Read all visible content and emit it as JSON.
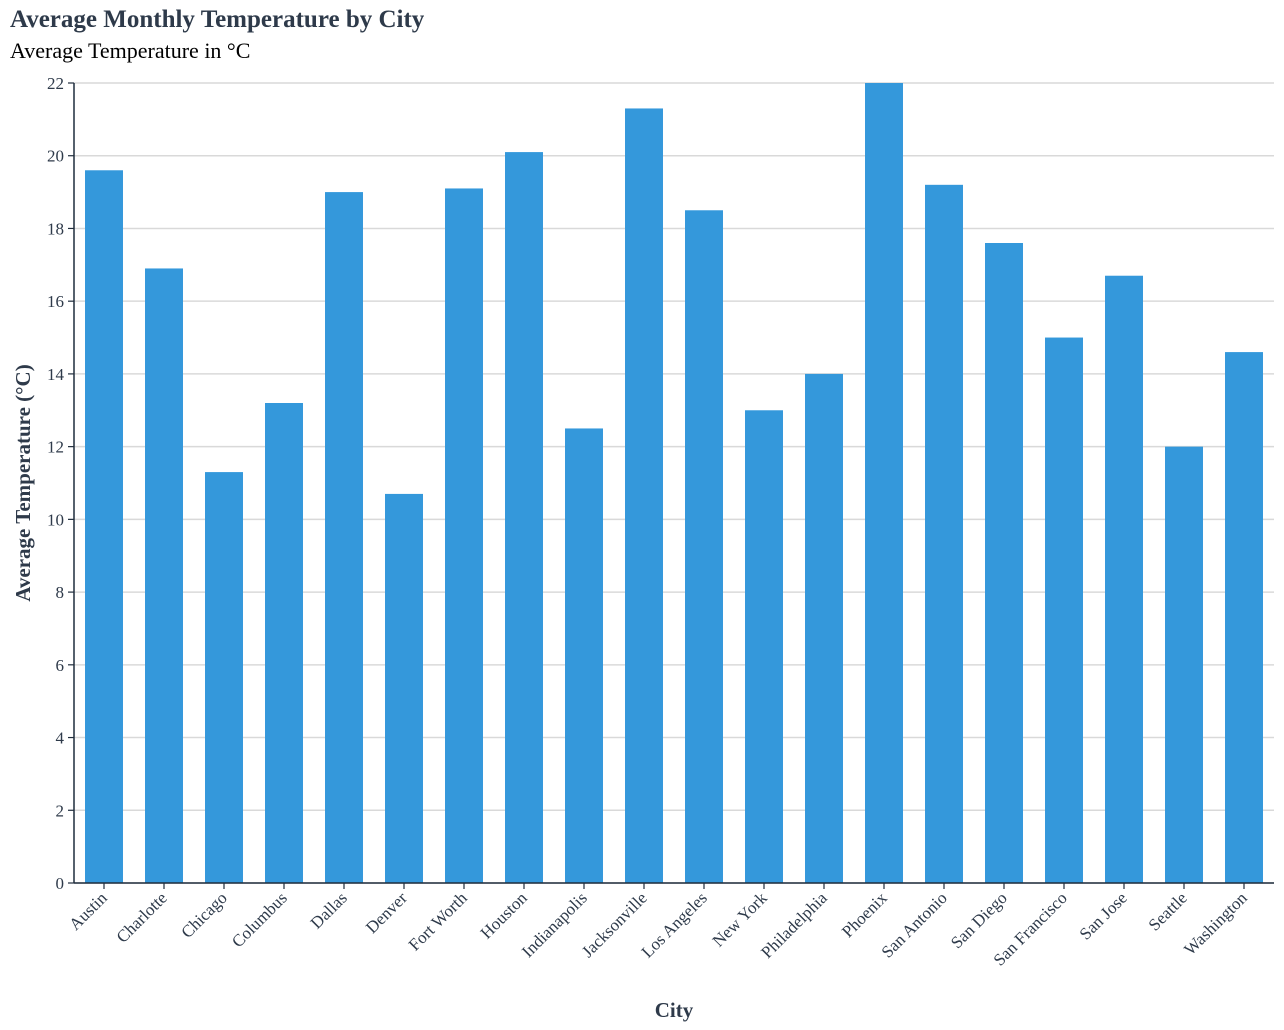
{
  "title": "Average Monthly Temperature by City",
  "subtitle": "Average Temperature in °C",
  "chart_data": {
    "type": "bar",
    "title": "Average Monthly Temperature by City",
    "subtitle": "Average Temperature in °C",
    "xlabel": "City",
    "ylabel": "Average Temperature (°C)",
    "ylim": [
      0,
      22
    ],
    "yticks": [
      0,
      2,
      4,
      6,
      8,
      10,
      12,
      14,
      16,
      18,
      20,
      22
    ],
    "grid": true,
    "legend": "none",
    "bar_color": "#3498db",
    "categories": [
      "Austin",
      "Charlotte",
      "Chicago",
      "Columbus",
      "Dallas",
      "Denver",
      "Fort Worth",
      "Houston",
      "Indianapolis",
      "Jacksonville",
      "Los Angeles",
      "New York",
      "Philadelphia",
      "Phoenix",
      "San Antonio",
      "San Diego",
      "San Francisco",
      "San Jose",
      "Seattle",
      "Washington"
    ],
    "values": [
      19.6,
      16.9,
      11.3,
      13.2,
      19.0,
      10.7,
      19.1,
      20.1,
      12.5,
      21.3,
      18.5,
      13.0,
      14.0,
      22.0,
      19.2,
      17.6,
      15.0,
      16.7,
      12.0,
      14.6
    ]
  }
}
